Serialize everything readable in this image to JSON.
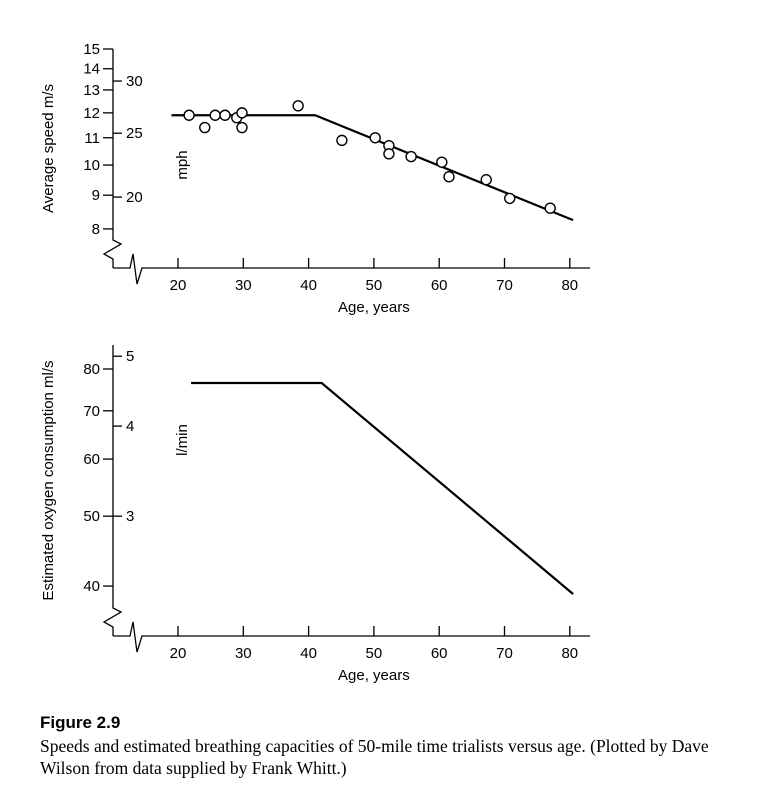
{
  "chart_data": [
    {
      "type": "scatter",
      "xlabel": "Age, years",
      "ylabel": "Average speed m/s",
      "ylabel_secondary": "mph",
      "y_scale": "log",
      "xlim": [
        14,
        83
      ],
      "ylim": [
        8,
        15
      ],
      "x_ticks": [
        20,
        30,
        40,
        50,
        60,
        70,
        80
      ],
      "y_ticks": [
        8,
        9,
        10,
        11,
        12,
        13,
        14,
        15
      ],
      "y_secondary_ticks": [
        20,
        25,
        30
      ],
      "axis_breaks": true,
      "grid": false,
      "points": [
        [
          21.7,
          11.9
        ],
        [
          24.1,
          11.4
        ],
        [
          25.7,
          11.9
        ],
        [
          27.2,
          11.9
        ],
        [
          29.0,
          11.8
        ],
        [
          29.8,
          12.0
        ],
        [
          29.8,
          11.4
        ],
        [
          38.4,
          12.3
        ],
        [
          45.1,
          10.9
        ],
        [
          50.2,
          11.0
        ],
        [
          52.3,
          10.7
        ],
        [
          52.3,
          10.4
        ],
        [
          55.7,
          10.3
        ],
        [
          60.4,
          10.1
        ],
        [
          61.5,
          9.6
        ],
        [
          67.2,
          9.5
        ],
        [
          70.8,
          8.9
        ],
        [
          77.0,
          8.6
        ]
      ],
      "fit_line": [
        [
          19,
          11.9
        ],
        [
          41,
          11.9
        ],
        [
          80.5,
          8.25
        ]
      ]
    },
    {
      "type": "line",
      "xlabel": "Age, years",
      "ylabel": "Estimated oxygen consumption ml/s",
      "ylabel_secondary": "l/min",
      "y_scale": "log",
      "xlim": [
        14,
        83
      ],
      "x_ticks": [
        20,
        30,
        40,
        50,
        60,
        70,
        80
      ],
      "y_ticks": [
        40,
        50,
        60,
        70,
        80
      ],
      "y_secondary_ticks": [
        3,
        4,
        5
      ],
      "axis_breaks": true,
      "grid": false,
      "line": [
        [
          22,
          76.5
        ],
        [
          42,
          76.5
        ],
        [
          80.5,
          39
        ]
      ]
    }
  ],
  "caption": {
    "title": "Figure 2.9",
    "text": "Speeds and estimated breathing capacities of 50-mile time trialists versus age. (Plotted by Dave Wilson from data supplied by Frank Whitt.)"
  }
}
